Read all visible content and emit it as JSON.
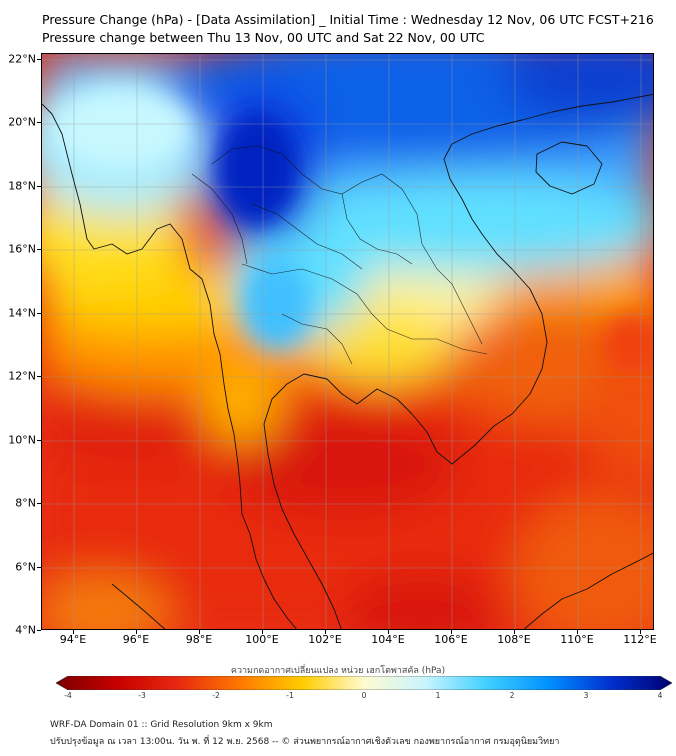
{
  "title_line1": "Pressure Change (hPa) - [Data Assimilation] _ Initial Time : Wednesday 12 Nov, 06 UTC FCST+216",
  "title_line2": "Pressure change between Thu 13 Nov, 00 UTC and Sat 22 Nov, 00 UTC",
  "lat_labels": [
    "22°N",
    "20°N",
    "18°N",
    "16°N",
    "14°N",
    "12°N",
    "10°N",
    "8°N",
    "6°N",
    "4°N"
  ],
  "lon_labels": [
    "94°E",
    "96°E",
    "98°E",
    "100°E",
    "102°E",
    "104°E",
    "106°E",
    "108°E",
    "110°E",
    "112°E"
  ],
  "colorbar": {
    "label": "ความกดอากาศเปลี่ยนแปลง หน่วย เฮกโตพาสคัล (hPa)",
    "ticks": [
      "-4",
      "-3",
      "-2",
      "-1",
      "0",
      "1",
      "2",
      "3",
      "4"
    ],
    "min": -4,
    "max": 4,
    "colors": [
      "#7a0000",
      "#c80000",
      "#e82a10",
      "#ff7a00",
      "#ffcc00",
      "#fffbd0",
      "#c8f4ff",
      "#40d0ff",
      "#0090ff",
      "#0030d0",
      "#000070"
    ]
  },
  "footer_line1": "WRF-DA Domain 01 :: Grid Resolution 9km x 9km",
  "footer_line2": "ปรับปรุงข้อมูล ณ เวลา 13:00น. วัน พ. ที่ 12 พ.ย. 2568 -- © ส่วนพยากรณ์อากาศเชิงตัวเลข กองพยากรณ์อากาศ กรมอุตุนิยมวิทยา"
}
